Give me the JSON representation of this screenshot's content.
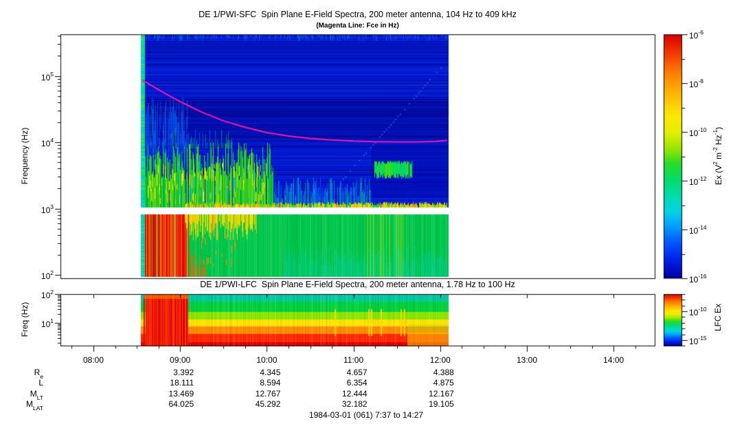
{
  "figure": {
    "titles": {
      "sfc_title": "DE 1/PWI-SFC  Spin Plane E-Field Spectra, 200 meter antenna, 104 Hz to 409 kHz",
      "sfc_subtitle": "(Magenta Line: Fce in Hz)",
      "lfc_title": "DE 1/PWI-LFC  Spin Plane E-Field Spectra, 200 meter antenna, 1.78 Hz to 100 Hz",
      "caption": "1984-03-01 (061) 7:37 to 14:27"
    }
  },
  "chart_data": {
    "type": "heatmap",
    "time_axis": {
      "start_label": "7:37",
      "end_label": "14:27",
      "tick_labels": [
        {
          "t": 8,
          "label": "08:00"
        },
        {
          "t": 9,
          "label": "09:00"
        },
        {
          "t": 10,
          "label": "10:00"
        },
        {
          "t": 11,
          "label": "11:00"
        },
        {
          "t": 12,
          "label": "12:00"
        },
        {
          "t": 13,
          "label": "13:00"
        },
        {
          "t": 14,
          "label": "14:00"
        }
      ],
      "minor_tick_minutes": 15
    },
    "colormap": [
      {
        "pos": 0.0,
        "color": "#d80000"
      },
      {
        "pos": 0.07,
        "color": "#f03200"
      },
      {
        "pos": 0.15,
        "color": "#ff7800"
      },
      {
        "pos": 0.24,
        "color": "#ffb400"
      },
      {
        "pos": 0.33,
        "color": "#ffe600"
      },
      {
        "pos": 0.4,
        "color": "#e6f000"
      },
      {
        "pos": 0.47,
        "color": "#96e600"
      },
      {
        "pos": 0.53,
        "color": "#28dc28"
      },
      {
        "pos": 0.6,
        "color": "#00dc6e"
      },
      {
        "pos": 0.67,
        "color": "#00dcb4"
      },
      {
        "pos": 0.73,
        "color": "#00d2e6"
      },
      {
        "pos": 0.79,
        "color": "#009bff"
      },
      {
        "pos": 0.86,
        "color": "#0050ff"
      },
      {
        "pos": 0.93,
        "color": "#001ee6"
      },
      {
        "pos": 1.0,
        "color": "#0000a0"
      }
    ],
    "panels": [
      {
        "id": "sfc",
        "instrument": "DE 1/PWI-SFC",
        "ylabel": "Frequency (Hz)",
        "yticks": [
          {
            "base": "10",
            "exp": "5",
            "f": 100000
          },
          {
            "base": "10",
            "exp": "4",
            "f": 10000
          },
          {
            "base": "10",
            "exp": "3",
            "f": 1000
          },
          {
            "base": "10",
            "exp": "2",
            "f": 100
          }
        ],
        "freq_range_hz": [
          104,
          409000
        ],
        "data_time_range_hours": [
          8.55,
          12.1
        ],
        "receiver_gap_hz": [
          820,
          1040
        ],
        "fce_line": {
          "color": "#ff14b4",
          "label": "Fce in Hz",
          "points_t_hz": [
            [
              8.56,
              87000
            ],
            [
              8.8,
              57000
            ],
            [
              9.0,
              41000
            ],
            [
              9.25,
              28500
            ],
            [
              9.5,
              21000
            ],
            [
              9.75,
              16800
            ],
            [
              10.0,
              14000
            ],
            [
              10.25,
              12400
            ],
            [
              10.5,
              11400
            ],
            [
              10.75,
              10800
            ],
            [
              11.0,
              10400
            ],
            [
              11.25,
              10200
            ],
            [
              11.5,
              10100
            ],
            [
              11.75,
              10100
            ],
            [
              11.95,
              10300
            ],
            [
              12.08,
              10600
            ]
          ]
        },
        "features": [
          {
            "kind": "fill",
            "t": [
              8.55,
              12.1
            ],
            "f": [
              1040,
              420000
            ],
            "color": "#0018cd"
          },
          {
            "kind": "hnoise",
            "t": [
              8.55,
              12.1
            ],
            "f": [
              1040,
              420000
            ],
            "density": 0.38,
            "colors": [
              "rgba(0,0,120,0.50)",
              "rgba(30,80,255,0.28)"
            ]
          },
          {
            "kind": "fill",
            "t": [
              8.55,
              12.1
            ],
            "f": [
              11000,
              45000
            ],
            "color": "rgba(0,0,130,0.22)"
          },
          {
            "kind": "hnoise",
            "t": [
              8.55,
              12.1
            ],
            "f": [
              11000,
              45000
            ],
            "density": 0.5,
            "colors": [
              "rgba(0,0,110,0.35)"
            ]
          },
          {
            "kind": "vnoise",
            "t": [
              8.55,
              12.1
            ],
            "f": [
              150000,
              420000
            ],
            "anchor": "top",
            "density": 0.5,
            "minh": 2,
            "maxh": 10,
            "colors": [
              "rgba(30,80,255,0.5)",
              "rgba(0,160,230,0.45)"
            ]
          },
          {
            "kind": "vnoise",
            "t": [
              8.58,
              9.1
            ],
            "f": [
              3500,
              50000
            ],
            "anchor": "span",
            "density": 0.8,
            "minh": 20,
            "maxh": 90,
            "colors": [
              "rgba(20,90,255,0.55)",
              "rgba(0,150,255,0.50)"
            ]
          },
          {
            "kind": "vnoise",
            "t": [
              8.58,
              10.08
            ],
            "f": [
              1040,
              11000
            ],
            "anchor": "bottom",
            "density": 0.95,
            "minh": 40,
            "maxh": 95,
            "colors": [
              "#00b43c",
              "#32cd32",
              "#64dc00"
            ]
          },
          {
            "kind": "vnoise",
            "t": [
              8.6,
              9.6
            ],
            "f": [
              8000,
              20000
            ],
            "anchor": "bottom",
            "density": 0.35,
            "minh": 5,
            "maxh": 30,
            "colors": [
              "rgba(0,180,60,0.7)",
              "rgba(0,150,255,0.5)"
            ]
          },
          {
            "kind": "vnoise",
            "t": [
              8.6,
              10.0
            ],
            "f": [
              1040,
              5000
            ],
            "anchor": "span",
            "density": 0.5,
            "minh": 5,
            "maxh": 20,
            "colors": [
              "#ffdc00",
              "#c8e600"
            ]
          },
          {
            "kind": "vnoise",
            "t": [
              8.7,
              10.05
            ],
            "f": [
              1040,
              6000
            ],
            "anchor": "span",
            "density": 0.2,
            "minh": 8,
            "maxh": 25,
            "colors": [
              "#00c8dc"
            ]
          },
          {
            "kind": "vnoise",
            "t": [
              10.08,
              11.2
            ],
            "f": [
              1040,
              4500
            ],
            "anchor": "bottom",
            "density": 0.7,
            "minh": 10,
            "maxh": 45,
            "colors": [
              "rgba(0,170,220,0.7)",
              "rgba(0,110,255,0.65)",
              "rgba(0,200,125,0.6)"
            ]
          },
          {
            "kind": "fill",
            "t": [
              11.2,
              12.1
            ],
            "f": [
              1500,
              9000
            ],
            "color": "rgba(0,10,170,0.55)"
          },
          {
            "kind": "vnoise",
            "t": [
              11.24,
              11.68
            ],
            "f": [
              2800,
              5200
            ],
            "anchor": "span",
            "density": 0.95,
            "minh": 16,
            "maxh": 26,
            "colors": [
              "#00e632",
              "#50dc00",
              "#00d27d"
            ]
          },
          {
            "kind": "vnoise",
            "t": [
              9.05,
              12.08
            ],
            "f": [
              1040,
              1600
            ],
            "anchor": "bottom",
            "density": 0.97,
            "minh": 3,
            "maxh": 8,
            "colors": [
              "#96e600",
              "#ffd200",
              "#ffa000",
              "#32c832"
            ]
          },
          {
            "kind": "dotline",
            "from_t_f": [
              10.85,
              2600
            ],
            "to_t_f": [
              12.03,
              150000
            ],
            "color": "rgba(70,120,255,0.6)",
            "dot": 2,
            "step": 5
          },
          {
            "kind": "fill",
            "t": [
              8.55,
              12.1
            ],
            "f": [
              93,
              820
            ],
            "color": "#00c84b"
          },
          {
            "kind": "vnoise",
            "t": [
              8.55,
              12.1
            ],
            "f": [
              93,
              820
            ],
            "anchor": "full",
            "density": 0.5,
            "colors": [
              "rgba(255,255,255,0.10)",
              "rgba(0,120,30,0.12)"
            ]
          },
          {
            "kind": "vnoise",
            "t": [
              8.57,
              9.1
            ],
            "f": [
              93,
              820
            ],
            "anchor": "full",
            "density": 0.92,
            "colors": [
              "#e60000",
              "#ff4600",
              "#ff9100",
              "#dc1400"
            ]
          },
          {
            "kind": "vnoise",
            "t": [
              9.1,
              9.3
            ],
            "f": [
              93,
              350
            ],
            "anchor": "bottom",
            "density": 0.5,
            "minh": 10,
            "maxh": 40,
            "colors": [
              "rgba(255,90,0,0.8)"
            ]
          },
          {
            "kind": "vnoise",
            "t": [
              9.05,
              9.9
            ],
            "f": [
              280,
              820
            ],
            "anchor": "top",
            "density": 0.8,
            "minh": 10,
            "maxh": 38,
            "colors": [
              "#ffdc00",
              "#c8e600",
              "#ffb400"
            ]
          },
          {
            "kind": "vnoise",
            "t": [
              9.15,
              9.65
            ],
            "f": [
              130,
              420
            ],
            "anchor": "span",
            "density": 0.3,
            "minh": 5,
            "maxh": 14,
            "colors": [
              "#ff8c00"
            ]
          },
          {
            "kind": "vnoise",
            "t": [
              10.2,
              12.08
            ],
            "f": [
              93,
              330
            ],
            "anchor": "bottom",
            "density": 0.75,
            "minh": 15,
            "maxh": 45,
            "colors": [
              "rgba(0,200,160,0.5)",
              "rgba(0,210,190,0.45)"
            ]
          },
          {
            "kind": "vnoise",
            "t": [
              11.15,
              11.6
            ],
            "f": [
              93,
              820
            ],
            "anchor": "full",
            "density": 0.4,
            "colors": [
              "rgba(210,230,0,0.35)"
            ]
          },
          {
            "kind": "hnoise",
            "t": [
              8.55,
              8.595
            ],
            "f": [
              93,
              420000
            ],
            "density": 1.0,
            "colors": [
              "#00dc82",
              "#00cdb4",
              "#2ce65a",
              "#00c8e6"
            ]
          },
          {
            "kind": "fill",
            "t": [
              8.55,
              12.1
            ],
            "f": [
              820,
              1040
            ],
            "color": "#ffffff"
          }
        ]
      },
      {
        "id": "lfc",
        "instrument": "DE 1/PWI-LFC",
        "ylabel": "Freq (Hz)",
        "yticks": [
          {
            "base": "10",
            "exp": "2",
            "f": 100
          },
          {
            "base": "10",
            "exp": "1",
            "f": 10
          }
        ],
        "freq_range_hz": [
          1.78,
          100
        ],
        "data_time_range_hours": [
          8.55,
          12.1
        ],
        "features": [
          {
            "kind": "fill",
            "t": [
              8.55,
              12.1
            ],
            "f": [
              55,
              100
            ],
            "color": "#00c8a0"
          },
          {
            "kind": "fill",
            "t": [
              8.55,
              12.1
            ],
            "f": [
              24,
              55
            ],
            "color": "#00d23c"
          },
          {
            "kind": "fill",
            "t": [
              8.55,
              12.1
            ],
            "f": [
              13,
              24
            ],
            "color": "#8ce600"
          },
          {
            "kind": "fill",
            "t": [
              8.55,
              12.1
            ],
            "f": [
              7.5,
              13
            ],
            "color": "#ffe400"
          },
          {
            "kind": "fill",
            "t": [
              8.55,
              12.1
            ],
            "f": [
              4.2,
              7.5
            ],
            "color": "#ff8c00"
          },
          {
            "kind": "fill",
            "t": [
              8.55,
              12.1
            ],
            "f": [
              1.64,
              4.2
            ],
            "color": "#ff2800"
          },
          {
            "kind": "fill",
            "t": [
              8.55,
              12.1
            ],
            "f": [
              1.64,
              2.2
            ],
            "color": "#e00000"
          },
          {
            "kind": "fill",
            "t": [
              8.55,
              12.1
            ],
            "f": [
              88,
              100
            ],
            "color": "rgba(0,220,210,0.5)"
          },
          {
            "kind": "vnoise",
            "t": [
              8.55,
              12.1
            ],
            "f": [
              1.64,
              100
            ],
            "anchor": "full",
            "density": 0.6,
            "colors": [
              "rgba(255,255,255,0.09)",
              "rgba(0,0,0,0.05)"
            ]
          },
          {
            "kind": "vnoise",
            "t": [
              8.575,
              9.09
            ],
            "f": [
              1.64,
              100
            ],
            "anchor": "full",
            "density": 0.95,
            "colors": [
              "#ee1400",
              "#ff3c00",
              "#d20000"
            ]
          },
          {
            "kind": "fill",
            "t": [
              8.575,
              9.09
            ],
            "f": [
              70,
              100
            ],
            "color": "rgba(255,140,0,0.55)"
          },
          {
            "kind": "vlines",
            "ts": [
              10.78,
              11.17,
              11.2,
              11.31,
              11.54,
              11.58
            ],
            "f": [
              3.5,
              30
            ],
            "color": "rgba(255,220,0,0.85)",
            "w": 2
          },
          {
            "kind": "fill",
            "t": [
              11.62,
              12.1
            ],
            "f": [
              1.64,
              4.6
            ],
            "color": "rgba(255,200,0,0.55)"
          },
          {
            "kind": "fill",
            "t": [
              11.62,
              12.1
            ],
            "f": [
              4.6,
              9
            ],
            "color": "rgba(170,220,0,0.35)"
          }
        ]
      }
    ],
    "colorbars": [
      {
        "id": "sfc",
        "label_segments": [
          [
            "Ex (V",
            "n"
          ],
          [
            "2",
            "sup"
          ],
          [
            " m",
            "n"
          ],
          [
            "-2",
            "sup"
          ],
          [
            " Hz",
            "n"
          ],
          [
            "-1",
            "sup"
          ],
          [
            ")",
            "n"
          ]
        ],
        "labeled_exps": [
          -6,
          -8,
          -10,
          -12,
          -14,
          -16
        ],
        "minor_exps": [
          -7,
          -9,
          -11,
          -13,
          -15
        ],
        "range_exp": [
          -6,
          -16
        ]
      },
      {
        "id": "lfc",
        "label_segments": [
          [
            "LFC Ex",
            "n"
          ]
        ],
        "labeled_exps": [
          -10,
          -15
        ],
        "minor_exps": [
          -7,
          -8,
          -9,
          -11,
          -12,
          -13,
          -14,
          -16
        ],
        "range_exp": [
          -7,
          -16
        ]
      }
    ],
    "ephemeris": {
      "rows": [
        {
          "label_base": "R",
          "label_sub": "e",
          "values": [
            "3.392",
            "4.345",
            "4.657",
            "4.388"
          ]
        },
        {
          "label_base": "L",
          "label_sub": "",
          "values": [
            "18.111",
            "8.594",
            "6.354",
            "4.875"
          ]
        },
        {
          "label_base": "M",
          "label_sub": "LT",
          "values": [
            "13.469",
            "12.767",
            "12.444",
            "12.167"
          ]
        },
        {
          "label_base": "M",
          "label_sub": "LAT",
          "values": [
            "64.025",
            "45.292",
            "32.182",
            "19.105"
          ]
        }
      ],
      "value_times": [
        9,
        10,
        11,
        12
      ]
    }
  }
}
